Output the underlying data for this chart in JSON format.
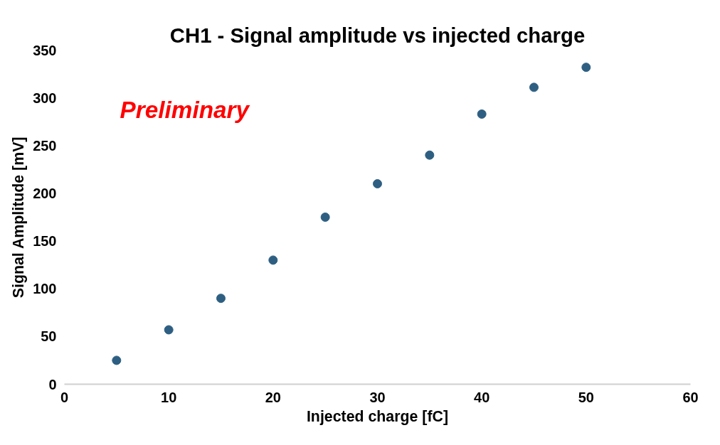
{
  "chart_data": {
    "type": "scatter",
    "title": "CH1 - Signal amplitude vs injected charge",
    "xlabel": "Injected charge [fC]",
    "ylabel": "Signal Amplitude [mV]",
    "annotations": [
      "Preliminary"
    ],
    "x": [
      5,
      10,
      15,
      20,
      25,
      30,
      35,
      40,
      45,
      50
    ],
    "series": [
      {
        "color": "#2e5f82",
        "values": [
          25,
          57,
          90,
          130,
          175,
          210,
          240,
          283,
          311,
          332
        ]
      }
    ],
    "xlim": [
      0,
      60
    ],
    "xticks": [
      0,
      10,
      20,
      30,
      40,
      50,
      60
    ],
    "ylim": [
      0,
      350
    ],
    "yticks": [
      0,
      50,
      100,
      150,
      200,
      250,
      300,
      350
    ],
    "grid": false,
    "marker": "circle"
  }
}
